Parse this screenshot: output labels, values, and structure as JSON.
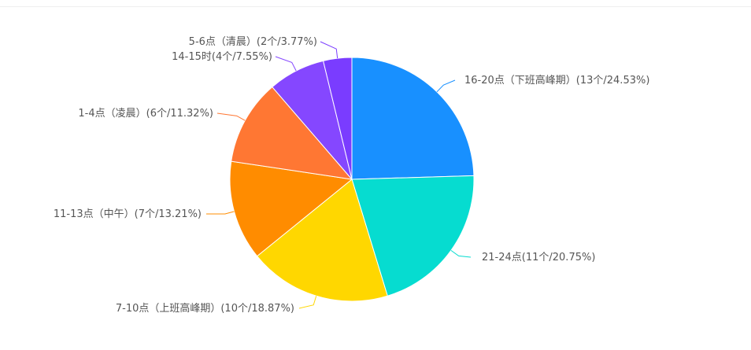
{
  "chart_data": {
    "type": "pie",
    "slices": [
      {
        "label": "16-20点（下班高峰期）(13个/24.53%)",
        "value": 13,
        "percent": 24.53,
        "color": "#1890ff"
      },
      {
        "label": "21-24点(11个/20.75%)",
        "value": 11,
        "percent": 20.75,
        "color": "#06dcd0"
      },
      {
        "label": "7-10点（上班高峰期）(10个/18.87%)",
        "value": 10,
        "percent": 18.87,
        "color": "#ffd700"
      },
      {
        "label": "11-13点（中午）(7个/13.21%)",
        "value": 7,
        "percent": 13.21,
        "color": "#ff8c00"
      },
      {
        "label": "1-4点（凌晨）(6个/11.32%)",
        "value": 6,
        "percent": 11.32,
        "color": "#ff7733"
      },
      {
        "label": "14-15时(4个/7.55%)",
        "value": 4,
        "percent": 7.55,
        "color": "#8547ff"
      },
      {
        "label": "5-6点（清晨）(2个/3.77%)",
        "value": 2,
        "percent": 3.77,
        "color": "#7a3cff"
      }
    ]
  }
}
